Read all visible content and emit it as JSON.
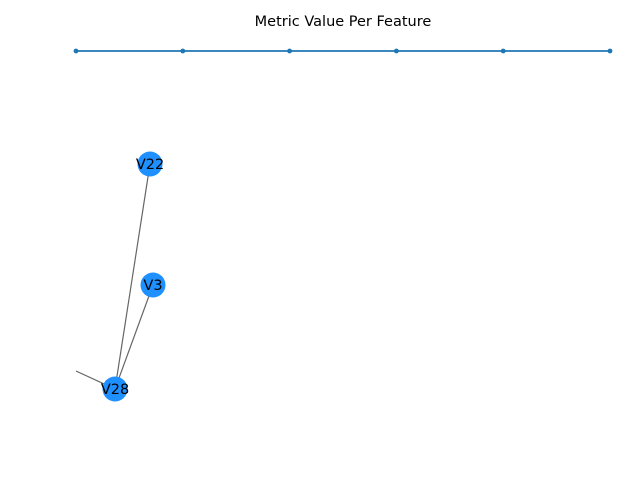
{
  "figure": {
    "title": "Metric Value Per Feature"
  },
  "colors": {
    "node": "#1e90ff",
    "edge": "#666666",
    "axis_line": "#1f77b4",
    "background": "#ffffff"
  },
  "metric_line": {
    "points": 6
  },
  "graph": {
    "nodes": [
      {
        "id": "V22",
        "label": "V22"
      },
      {
        "id": "V3",
        "label": "V3"
      },
      {
        "id": "V28",
        "label": "V28"
      }
    ],
    "edges": [
      {
        "from": "V28",
        "to": "V22"
      },
      {
        "from": "V28",
        "to": "V3"
      },
      {
        "from": "V28",
        "to": "offscreen-left"
      }
    ]
  }
}
